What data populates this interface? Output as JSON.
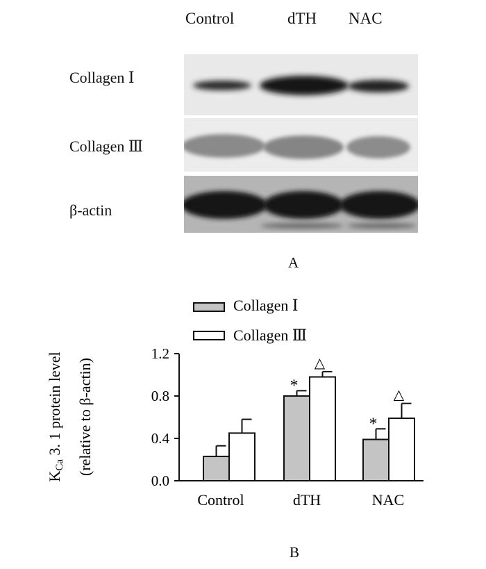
{
  "panel_a": {
    "lanes": [
      "Control",
      "dTH",
      "NAC"
    ],
    "rows": [
      {
        "label": "Collagen Ⅰ"
      },
      {
        "label": "Collagen Ⅲ"
      },
      {
        "label": "β-actin"
      }
    ],
    "letter": "A"
  },
  "panel_b": {
    "letter": "B"
  },
  "chart_data": {
    "type": "bar",
    "categories": [
      "Control",
      "dTH",
      "NAC"
    ],
    "series": [
      {
        "name": "Collagen Ⅰ",
        "values": [
          0.23,
          0.8,
          0.39
        ],
        "errors": [
          0.1,
          0.05,
          0.1
        ],
        "color": "#c4c4c4",
        "marker": ""
      },
      {
        "name": "Collagen Ⅲ",
        "values": [
          0.45,
          0.98,
          0.59
        ],
        "errors": [
          0.13,
          0.05,
          0.14
        ],
        "color": "#ffffff",
        "marker": ""
      }
    ],
    "markers": [
      {
        "series": 0,
        "index": 1,
        "text": "*"
      },
      {
        "series": 1,
        "index": 1,
        "text": "△"
      },
      {
        "series": 0,
        "index": 2,
        "text": "*"
      },
      {
        "series": 1,
        "index": 2,
        "text": "△"
      }
    ],
    "yticks": [
      "0.0",
      "0.4",
      "0.8",
      "1.2"
    ],
    "ylim": [
      0,
      1.2
    ],
    "ylabel_line1_main": "K",
    "ylabel_line1_sub": "Ca",
    "ylabel_line1_rest": " 3. 1  protein level",
    "ylabel_line2": "(relative to β-actin)",
    "legend_position": "top-left",
    "grid": false
  }
}
